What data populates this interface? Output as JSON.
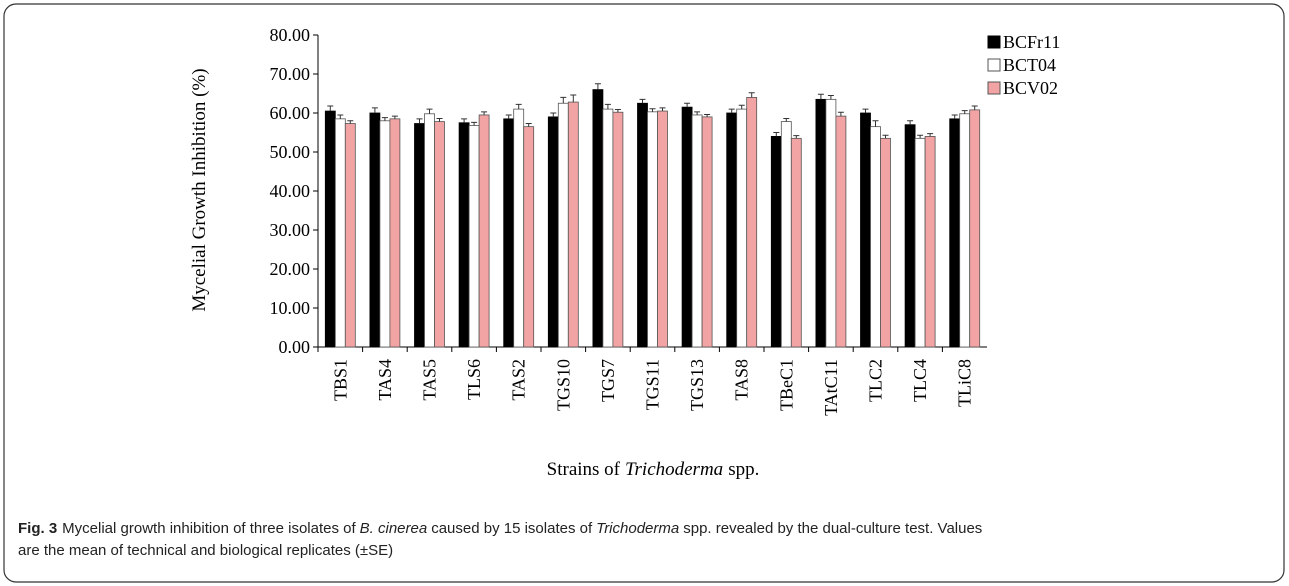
{
  "chart_data": {
    "type": "bar",
    "y_label": "Mycelial Growth Inhibition (%)",
    "x_label": [
      "Strains of",
      "Trichoderma",
      "spp."
    ],
    "categories": [
      "TBS1",
      "TAS4",
      "TAS5",
      "TLS6",
      "TAS2",
      "TGS10",
      "TGS7",
      "TGS11",
      "TGS13",
      "TAS8",
      "TBeC1",
      "TAtC11",
      "TLC2",
      "TLC4",
      "TLiC8"
    ],
    "series": [
      {
        "name": "BCFr11",
        "color": "#000000",
        "values": [
          60.5,
          60.0,
          57.3,
          57.5,
          58.5,
          59.0,
          66.0,
          62.5,
          61.5,
          60.0,
          54.0,
          63.5,
          60.0,
          57.0,
          58.5
        ],
        "errors": [
          1.3,
          1.3,
          1.2,
          1.0,
          1.0,
          1.0,
          1.5,
          1.0,
          1.0,
          1.0,
          1.0,
          1.3,
          1.0,
          1.0,
          1.0
        ]
      },
      {
        "name": "BCT04",
        "color": "#ffffff",
        "values": [
          58.5,
          58.0,
          59.8,
          56.8,
          61.0,
          62.5,
          61.0,
          60.3,
          59.5,
          61.0,
          57.8,
          63.5,
          56.5,
          53.5,
          59.8
        ],
        "errors": [
          1.0,
          0.8,
          1.2,
          0.8,
          1.2,
          1.5,
          1.2,
          0.8,
          0.8,
          1.0,
          0.8,
          1.0,
          1.5,
          0.8,
          0.8
        ]
      },
      {
        "name": "BCV02",
        "color": "#f2a3a3",
        "values": [
          57.3,
          58.5,
          57.8,
          59.5,
          56.5,
          62.8,
          60.2,
          60.5,
          59.0,
          64.0,
          53.5,
          59.2,
          53.5,
          54.0,
          60.8
        ],
        "errors": [
          0.7,
          0.7,
          0.8,
          0.8,
          0.8,
          1.8,
          0.7,
          0.8,
          0.6,
          1.2,
          0.7,
          1.0,
          0.8,
          0.7,
          1.0
        ]
      }
    ],
    "ylim": [
      0,
      80
    ],
    "yticks": [
      {
        "value": 0,
        "label": "0.00"
      },
      {
        "value": 10,
        "label": "10.00"
      },
      {
        "value": 20,
        "label": "20.00"
      },
      {
        "value": 30,
        "label": "30.00"
      },
      {
        "value": 40,
        "label": "40.00"
      },
      {
        "value": 50,
        "label": "50.00"
      },
      {
        "value": 60,
        "label": "60.00"
      },
      {
        "value": 70,
        "label": "70.00"
      },
      {
        "value": 80,
        "label": "80.00"
      }
    ],
    "legend": "top-right"
  },
  "caption": {
    "label": "Fig. 3",
    "parts": [
      "Mycelial growth inhibition of three isolates of",
      "B. cinerea",
      "caused by 15 isolates of",
      "Trichoderma",
      "spp. revealed by the dual-culture test. Values",
      "are the mean of technical and biological replicates (±SE)"
    ]
  }
}
